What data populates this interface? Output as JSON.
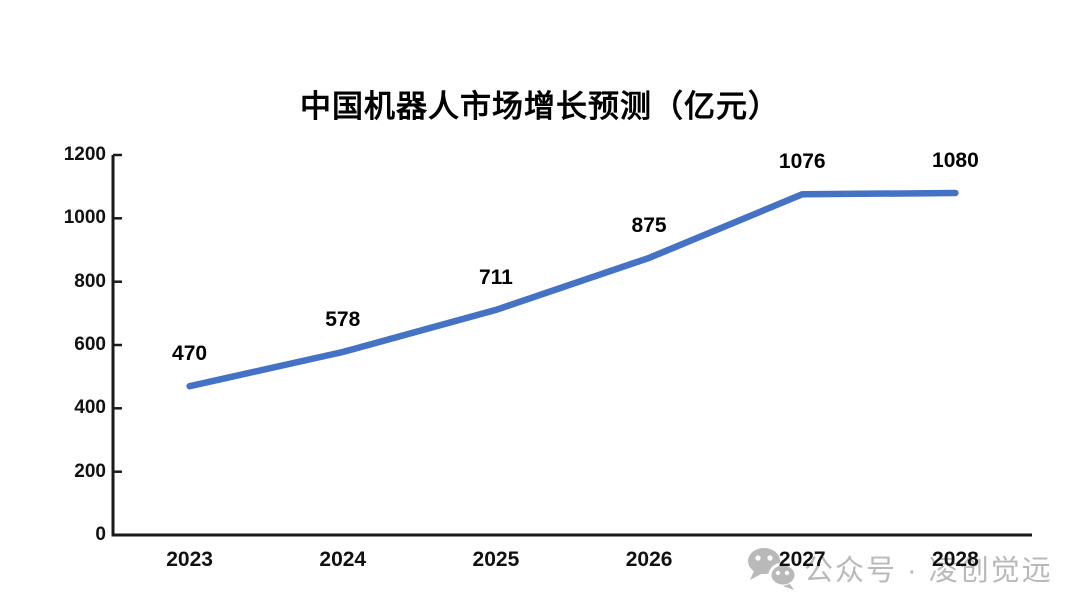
{
  "chart_data": {
    "type": "line",
    "title": "中国机器人市场增长预测（亿元）",
    "categories": [
      "2023",
      "2024",
      "2025",
      "2026",
      "2027",
      "2028"
    ],
    "values": [
      470,
      578,
      711,
      875,
      1076,
      1080
    ],
    "xlabel": "",
    "ylabel": "",
    "ylim": [
      0,
      1200
    ],
    "y_ticks": [
      0,
      200,
      400,
      600,
      800,
      1000,
      1200
    ],
    "grid": false,
    "legend": "none",
    "line_color": "#4472C4",
    "axis_color": "#1a1a1a",
    "label_color": "#000000"
  },
  "watermark": {
    "icon": "wechat-icon",
    "text": "公众号 · 凌创觉远",
    "color": "#b9b9b9"
  }
}
